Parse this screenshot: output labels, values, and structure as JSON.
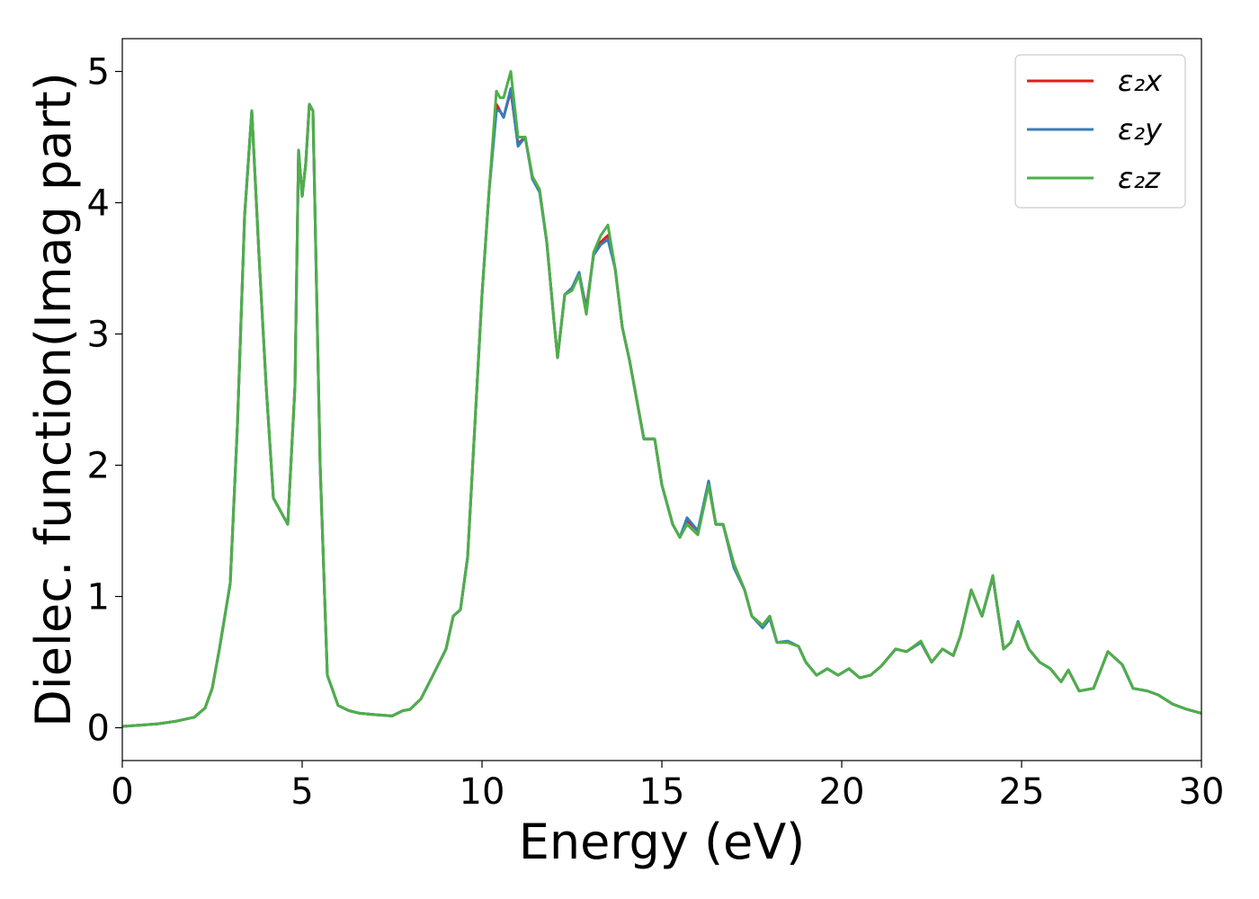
{
  "chart_data": {
    "type": "line",
    "xlabel": "Energy (eV)",
    "ylabel": "Dielec. function(Imag part)",
    "xlim": [
      0,
      30
    ],
    "ylim": [
      -0.25,
      5.25
    ],
    "xticks": [
      0,
      5,
      10,
      15,
      20,
      25,
      30
    ],
    "yticks": [
      0,
      1,
      2,
      3,
      4,
      5
    ],
    "grid": false,
    "legend_position": "top-right",
    "x": [
      0,
      0.5,
      1,
      1.5,
      2,
      2.3,
      2.5,
      2.7,
      3,
      3.2,
      3.4,
      3.6,
      3.8,
      4,
      4.2,
      4.4,
      4.6,
      4.8,
      4.9,
      5,
      5.1,
      5.2,
      5.3,
      5.5,
      5.7,
      6,
      6.3,
      6.6,
      7,
      7.5,
      7.8,
      8,
      8.3,
      8.6,
      9,
      9.2,
      9.4,
      9.6,
      9.8,
      10,
      10.2,
      10.4,
      10.5,
      10.6,
      10.8,
      11,
      11.2,
      11.4,
      11.6,
      11.8,
      12,
      12.1,
      12.3,
      12.5,
      12.7,
      12.9,
      13.1,
      13.3,
      13.5,
      13.7,
      13.9,
      14.1,
      14.3,
      14.5,
      14.8,
      15,
      15.3,
      15.5,
      15.7,
      16,
      16.3,
      16.5,
      16.7,
      17,
      17.3,
      17.5,
      17.8,
      18,
      18.2,
      18.5,
      18.8,
      19,
      19.3,
      19.6,
      19.9,
      20.2,
      20.5,
      20.8,
      21.1,
      21.5,
      21.8,
      22.2,
      22.5,
      22.8,
      23.1,
      23.3,
      23.6,
      23.9,
      24.2,
      24.5,
      24.7,
      24.9,
      25.2,
      25.5,
      25.8,
      26.1,
      26.3,
      26.6,
      27,
      27.4,
      27.8,
      28.1,
      28.5,
      28.8,
      29.2,
      29.6,
      30
    ],
    "series": [
      {
        "name": "ε₂x",
        "color": "#e41a1c",
        "values": [
          0.01,
          0.02,
          0.03,
          0.05,
          0.08,
          0.15,
          0.3,
          0.6,
          1.1,
          2.3,
          3.9,
          4.7,
          3.6,
          2.6,
          1.75,
          1.65,
          1.55,
          2.6,
          4.4,
          4.05,
          4.3,
          4.75,
          4.7,
          2.0,
          0.4,
          0.17,
          0.13,
          0.11,
          0.1,
          0.09,
          0.13,
          0.14,
          0.22,
          0.38,
          0.6,
          0.85,
          0.9,
          1.3,
          2.3,
          3.3,
          4.1,
          4.75,
          4.7,
          4.65,
          4.85,
          4.45,
          4.5,
          4.2,
          4.1,
          3.7,
          3.1,
          2.82,
          3.3,
          3.35,
          3.45,
          3.2,
          3.6,
          3.7,
          3.75,
          3.5,
          3.05,
          2.8,
          2.5,
          2.2,
          2.2,
          1.85,
          1.55,
          1.45,
          1.58,
          1.5,
          1.85,
          1.55,
          1.55,
          1.25,
          1.05,
          0.85,
          0.78,
          0.85,
          0.65,
          0.65,
          0.62,
          0.5,
          0.4,
          0.45,
          0.4,
          0.45,
          0.38,
          0.4,
          0.47,
          0.6,
          0.58,
          0.65,
          0.5,
          0.6,
          0.55,
          0.7,
          1.05,
          0.85,
          1.15,
          0.6,
          0.65,
          0.8,
          0.6,
          0.5,
          0.45,
          0.35,
          0.44,
          0.28,
          0.3,
          0.58,
          0.48,
          0.3,
          0.28,
          0.25,
          0.18,
          0.14,
          0.11
        ]
      },
      {
        "name": "ε₂y",
        "color": "#377eb8",
        "values": [
          0.01,
          0.02,
          0.03,
          0.05,
          0.08,
          0.15,
          0.3,
          0.6,
          1.1,
          2.3,
          3.9,
          4.7,
          3.6,
          2.6,
          1.75,
          1.65,
          1.55,
          2.6,
          4.4,
          4.05,
          4.3,
          4.75,
          4.7,
          2.0,
          0.4,
          0.17,
          0.13,
          0.11,
          0.1,
          0.09,
          0.13,
          0.14,
          0.22,
          0.38,
          0.6,
          0.85,
          0.9,
          1.3,
          2.3,
          3.3,
          4.1,
          4.7,
          4.7,
          4.65,
          4.87,
          4.43,
          4.5,
          4.18,
          4.08,
          3.7,
          3.1,
          2.82,
          3.3,
          3.35,
          3.47,
          3.18,
          3.6,
          3.68,
          3.72,
          3.5,
          3.05,
          2.8,
          2.5,
          2.2,
          2.2,
          1.85,
          1.55,
          1.45,
          1.6,
          1.5,
          1.88,
          1.55,
          1.55,
          1.22,
          1.05,
          0.85,
          0.76,
          0.83,
          0.65,
          0.66,
          0.62,
          0.5,
          0.4,
          0.45,
          0.4,
          0.45,
          0.38,
          0.4,
          0.47,
          0.6,
          0.58,
          0.65,
          0.5,
          0.6,
          0.55,
          0.7,
          1.05,
          0.85,
          1.15,
          0.6,
          0.65,
          0.81,
          0.6,
          0.5,
          0.45,
          0.35,
          0.44,
          0.28,
          0.3,
          0.58,
          0.48,
          0.3,
          0.28,
          0.25,
          0.18,
          0.14,
          0.11
        ]
      },
      {
        "name": "ε₂z",
        "color": "#4daf4a",
        "values": [
          0.01,
          0.02,
          0.03,
          0.05,
          0.08,
          0.15,
          0.3,
          0.6,
          1.1,
          2.3,
          3.9,
          4.7,
          3.6,
          2.6,
          1.75,
          1.65,
          1.55,
          2.6,
          4.4,
          4.05,
          4.3,
          4.75,
          4.7,
          2.0,
          0.4,
          0.17,
          0.13,
          0.11,
          0.1,
          0.09,
          0.13,
          0.14,
          0.22,
          0.38,
          0.6,
          0.85,
          0.9,
          1.3,
          2.3,
          3.3,
          4.1,
          4.85,
          4.8,
          4.8,
          5.0,
          4.5,
          4.5,
          4.2,
          4.1,
          3.7,
          3.1,
          2.82,
          3.3,
          3.33,
          3.45,
          3.15,
          3.62,
          3.75,
          3.83,
          3.5,
          3.05,
          2.8,
          2.5,
          2.2,
          2.2,
          1.85,
          1.55,
          1.45,
          1.55,
          1.47,
          1.85,
          1.55,
          1.55,
          1.25,
          1.05,
          0.85,
          0.78,
          0.85,
          0.65,
          0.65,
          0.62,
          0.5,
          0.4,
          0.45,
          0.4,
          0.45,
          0.38,
          0.4,
          0.47,
          0.6,
          0.58,
          0.66,
          0.5,
          0.6,
          0.55,
          0.7,
          1.05,
          0.85,
          1.16,
          0.6,
          0.65,
          0.8,
          0.6,
          0.5,
          0.45,
          0.35,
          0.44,
          0.28,
          0.3,
          0.58,
          0.48,
          0.3,
          0.28,
          0.25,
          0.18,
          0.14,
          0.11
        ]
      }
    ]
  }
}
